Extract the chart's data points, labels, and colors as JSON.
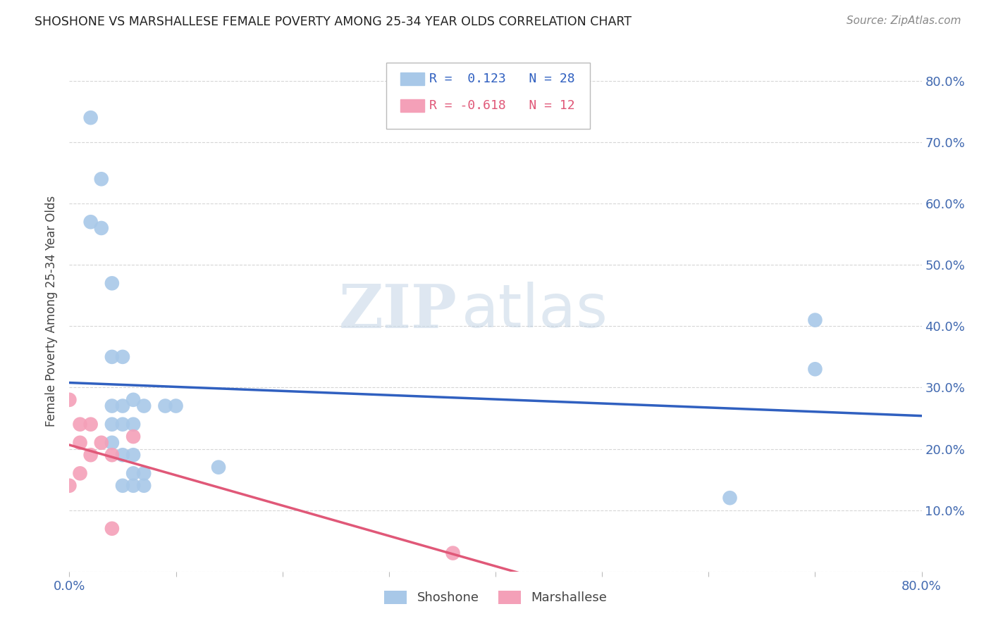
{
  "title": "SHOSHONE VS MARSHALLESE FEMALE POVERTY AMONG 25-34 YEAR OLDS CORRELATION CHART",
  "source": "Source: ZipAtlas.com",
  "tick_color": "#4169b0",
  "ylabel": "Female Poverty Among 25-34 Year Olds",
  "xlim": [
    0.0,
    0.8
  ],
  "ylim": [
    0.0,
    0.85
  ],
  "xticks": [
    0.0,
    0.1,
    0.2,
    0.3,
    0.4,
    0.5,
    0.6,
    0.7,
    0.8
  ],
  "yticks": [
    0.0,
    0.1,
    0.2,
    0.3,
    0.4,
    0.5,
    0.6,
    0.7,
    0.8
  ],
  "xtick_labels_show": {
    "0": "0.0%",
    "8": "80.0%"
  },
  "shoshone_color": "#a8c8e8",
  "marshallese_color": "#f4a0b8",
  "shoshone_line_color": "#3060c0",
  "marshallese_line_color": "#e05878",
  "R_shoshone": 0.123,
  "N_shoshone": 28,
  "R_marshallese": -0.618,
  "N_marshallese": 12,
  "shoshone_x": [
    0.02,
    0.02,
    0.03,
    0.04,
    0.04,
    0.04,
    0.04,
    0.04,
    0.05,
    0.05,
    0.05,
    0.05,
    0.05,
    0.06,
    0.06,
    0.06,
    0.06,
    0.06,
    0.07,
    0.07,
    0.07,
    0.09,
    0.1,
    0.14,
    0.62,
    0.7,
    0.7,
    0.03
  ],
  "shoshone_y": [
    0.74,
    0.57,
    0.64,
    0.47,
    0.35,
    0.27,
    0.24,
    0.21,
    0.35,
    0.27,
    0.24,
    0.19,
    0.14,
    0.28,
    0.24,
    0.19,
    0.16,
    0.14,
    0.27,
    0.16,
    0.14,
    0.27,
    0.27,
    0.17,
    0.12,
    0.41,
    0.33,
    0.56
  ],
  "marshallese_x": [
    0.0,
    0.0,
    0.01,
    0.01,
    0.01,
    0.02,
    0.02,
    0.03,
    0.04,
    0.04,
    0.06,
    0.36
  ],
  "marshallese_y": [
    0.28,
    0.14,
    0.24,
    0.21,
    0.16,
    0.24,
    0.19,
    0.21,
    0.19,
    0.07,
    0.22,
    0.03
  ],
  "background_color": "#ffffff",
  "grid_color": "#cccccc",
  "watermark_zip": "ZIP",
  "watermark_atlas": "atlas",
  "legend_shoshone": "Shoshone",
  "legend_marshallese": "Marshallese"
}
